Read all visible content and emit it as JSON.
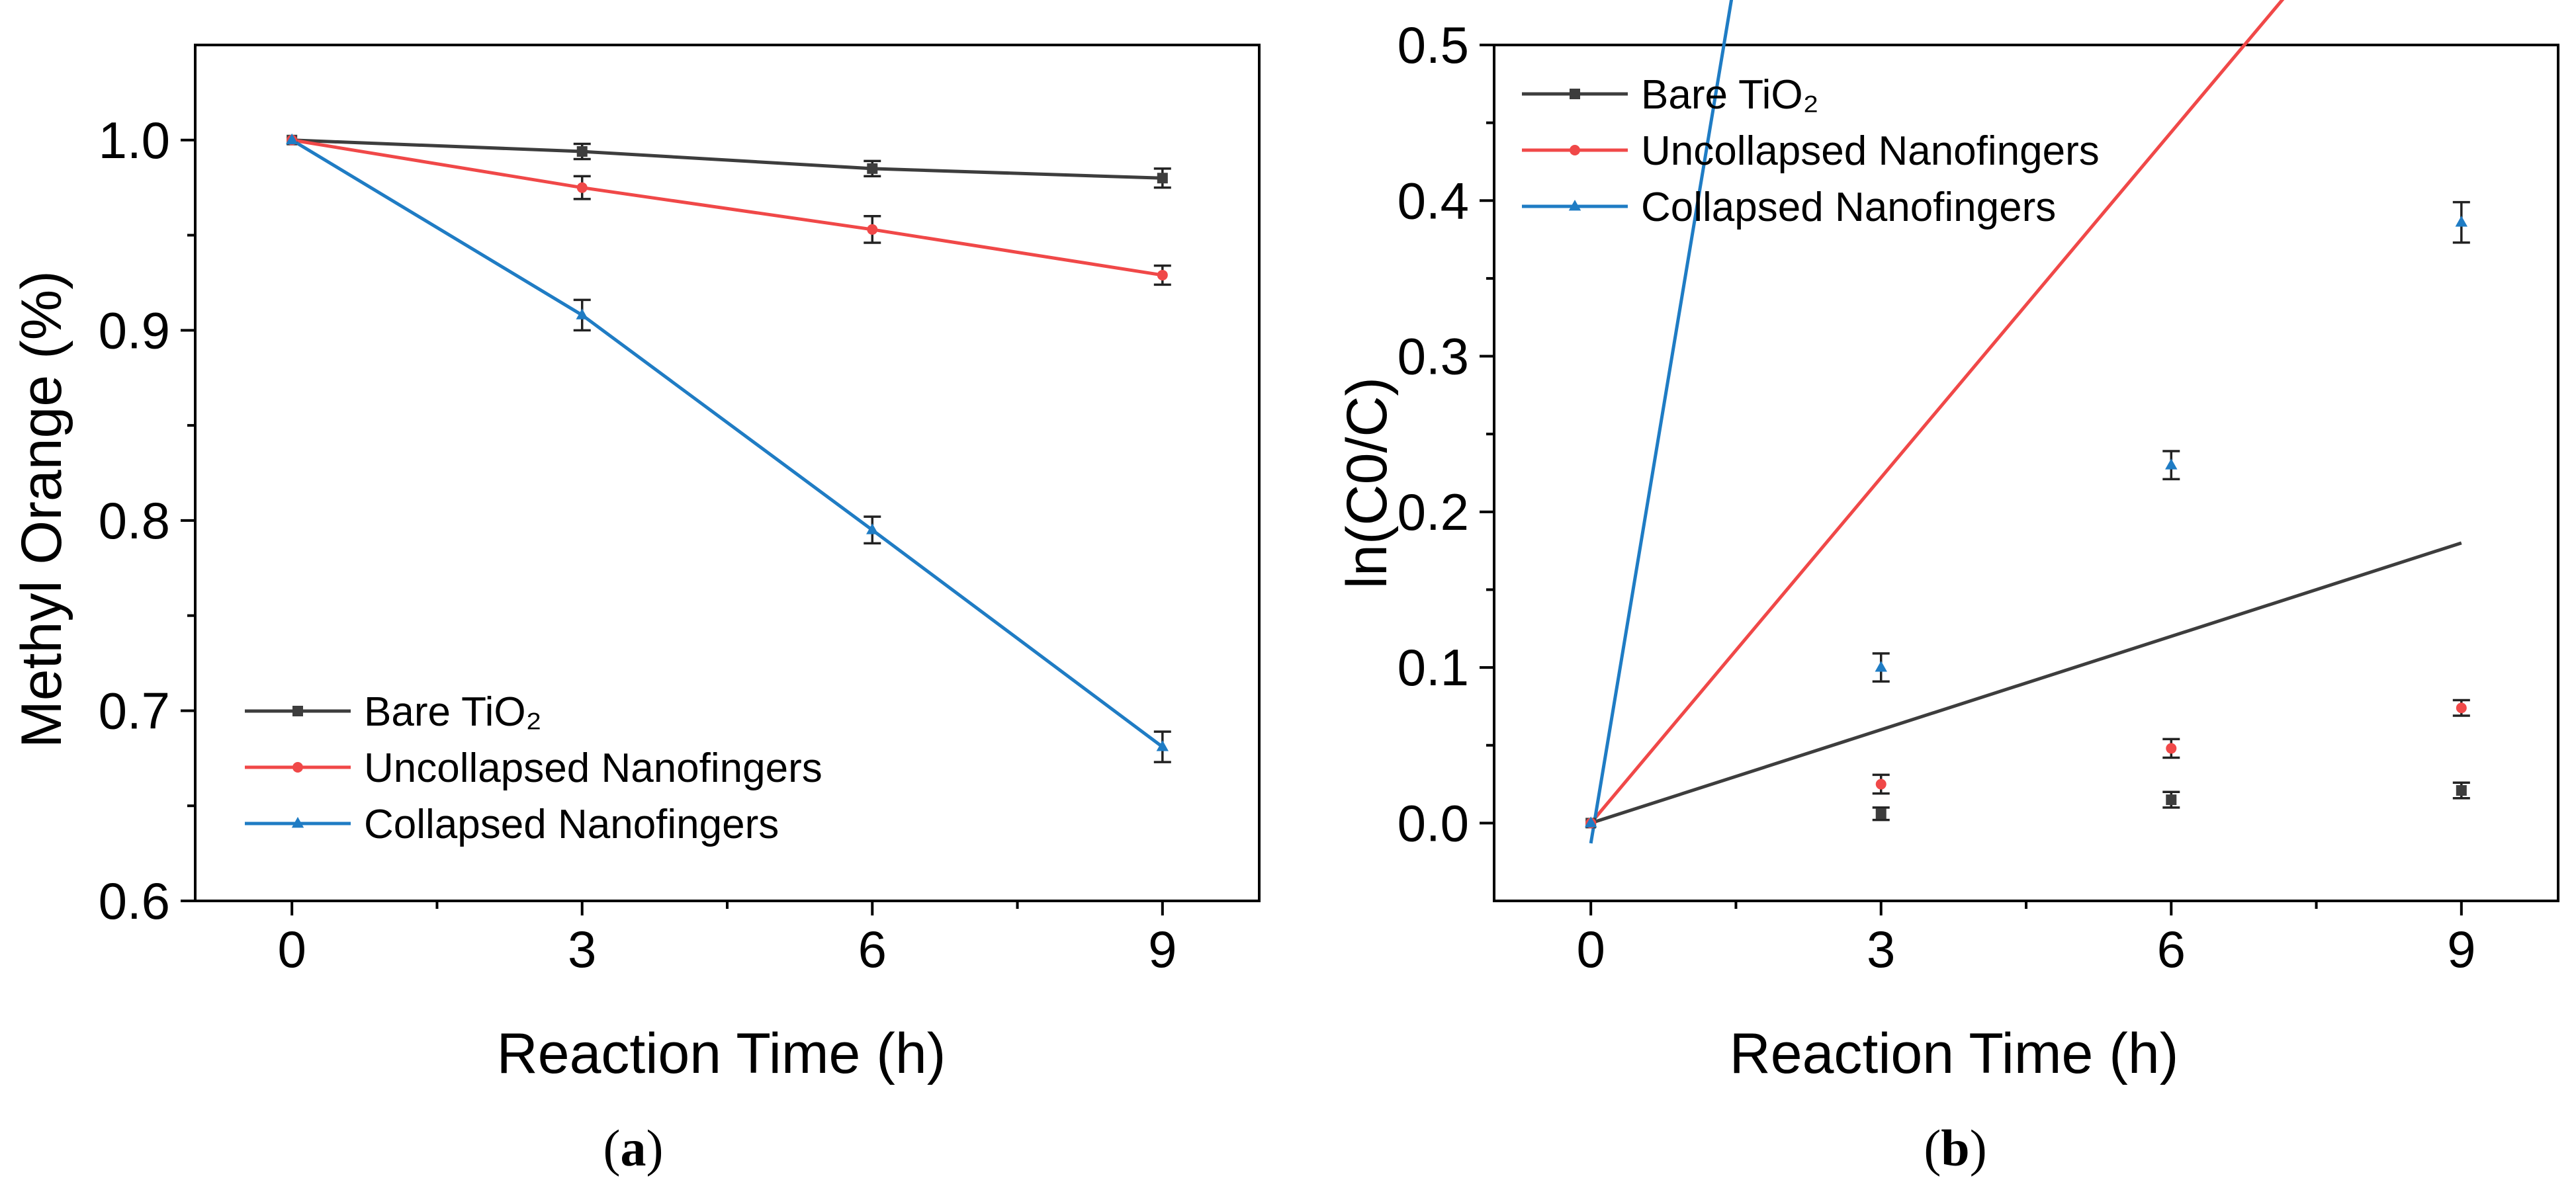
{
  "chart_data": [
    {
      "type": "line",
      "panel_label": "a",
      "xlabel": "Reaction Time (h)",
      "ylabel": "Methyl Orange (%)",
      "xlim": [
        -1.0,
        10.0
      ],
      "ylim": [
        0.6,
        1.05
      ],
      "xticks": [
        0,
        3,
        6,
        9
      ],
      "xtick_labels": [
        "0",
        "3",
        "6",
        "9"
      ],
      "yticks": [
        0.6,
        0.7,
        0.8,
        0.9,
        1.0
      ],
      "ytick_labels": [
        "0.6",
        "0.7",
        "0.8",
        "0.9",
        "1.0"
      ],
      "legend": "bottom-left",
      "x": [
        0,
        3,
        6,
        9
      ],
      "series": [
        {
          "name": "Bare TiO₂",
          "color": "#3d3d3d",
          "marker": "square",
          "values": [
            1.0,
            0.994,
            0.985,
            0.98
          ],
          "errors": [
            0.002,
            0.004,
            0.004,
            0.005
          ]
        },
        {
          "name": "Uncollapsed Nanofingers",
          "color": "#f04848",
          "marker": "circle",
          "values": [
            1.0,
            0.975,
            0.953,
            0.929
          ],
          "errors": [
            0.002,
            0.006,
            0.007,
            0.005
          ]
        },
        {
          "name": "Collapsed Nanofingers",
          "color": "#1f7cc4",
          "marker": "triangle",
          "values": [
            1.0,
            0.908,
            0.795,
            0.681
          ],
          "errors": [
            0.002,
            0.008,
            0.007,
            0.008
          ]
        }
      ]
    },
    {
      "type": "scatter",
      "panel_label": "b",
      "xlabel": "Reaction Time (h)",
      "ylabel": "ln(C0/C)",
      "xlim": [
        -1.0,
        10.0
      ],
      "ylim": [
        -0.05,
        0.5
      ],
      "xticks": [
        0,
        3,
        6,
        9
      ],
      "xtick_labels": [
        "0",
        "3",
        "6",
        "9"
      ],
      "yticks": [
        0.0,
        0.1,
        0.2,
        0.3,
        0.4,
        0.5
      ],
      "ytick_labels": [
        "0.0",
        "0.1",
        "0.2",
        "0.3",
        "0.4",
        "0.5"
      ],
      "legend": "top-left",
      "x": [
        0,
        3,
        6,
        9
      ],
      "series": [
        {
          "name": "Bare TiO₂",
          "color": "#3d3d3d",
          "marker": "square",
          "values": [
            0.0,
            0.006,
            0.015,
            0.021
          ],
          "errors": [
            0.002,
            0.004,
            0.005,
            0.005
          ],
          "fit": [
            0.0,
            0.02
          ]
        },
        {
          "name": "Uncollapsed Nanofingers",
          "color": "#f04848",
          "marker": "circle",
          "values": [
            0.0,
            0.025,
            0.048,
            0.074
          ],
          "errors": [
            0.002,
            0.006,
            0.006,
            0.005
          ],
          "fit": [
            0.0,
            0.074
          ]
        },
        {
          "name": "Collapsed Nanofingers",
          "color": "#1f7cc4",
          "marker": "triangle",
          "values": [
            0.0,
            0.1,
            0.23,
            0.386
          ],
          "errors": [
            0.002,
            0.009,
            0.009,
            0.013
          ],
          "fit": [
            -0.013,
            0.373
          ]
        }
      ]
    }
  ]
}
